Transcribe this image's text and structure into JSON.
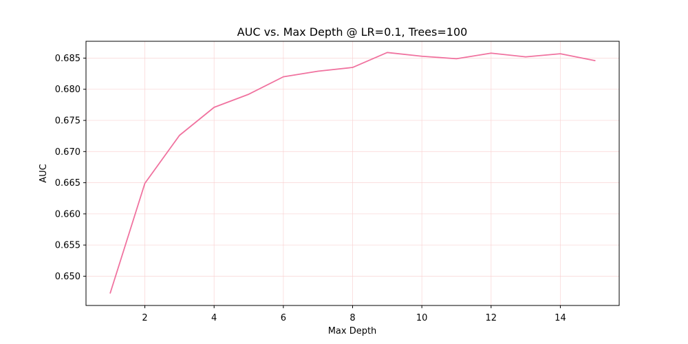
{
  "chart_data": {
    "type": "line",
    "title": "AUC vs. Max Depth @ LR=0.1, Trees=100",
    "xlabel": "Max Depth",
    "ylabel": "AUC",
    "xlim": [
      0.3,
      15.7
    ],
    "ylim": [
      0.6453,
      0.6877
    ],
    "xticks": [
      2,
      4,
      6,
      8,
      10,
      12,
      14
    ],
    "xtick_labels": [
      "2",
      "4",
      "6",
      "8",
      "10",
      "12",
      "14"
    ],
    "yticks": [
      0.65,
      0.655,
      0.66,
      0.665,
      0.67,
      0.675,
      0.68,
      0.685
    ],
    "ytick_labels": [
      "0.650",
      "0.655",
      "0.660",
      "0.665",
      "0.670",
      "0.675",
      "0.680",
      "0.685"
    ],
    "grid": true,
    "grid_color": "#f9d0d0",
    "series": [
      {
        "color": "#f0729f",
        "x": [
          1,
          2,
          3,
          4,
          5,
          6,
          7,
          8,
          9,
          10,
          11,
          12,
          13,
          14,
          15
        ],
        "y": [
          0.6473,
          0.6649,
          0.6726,
          0.6771,
          0.6792,
          0.682,
          0.6829,
          0.6835,
          0.6859,
          0.6853,
          0.6849,
          0.6858,
          0.6852,
          0.6857,
          0.6846
        ]
      }
    ]
  }
}
